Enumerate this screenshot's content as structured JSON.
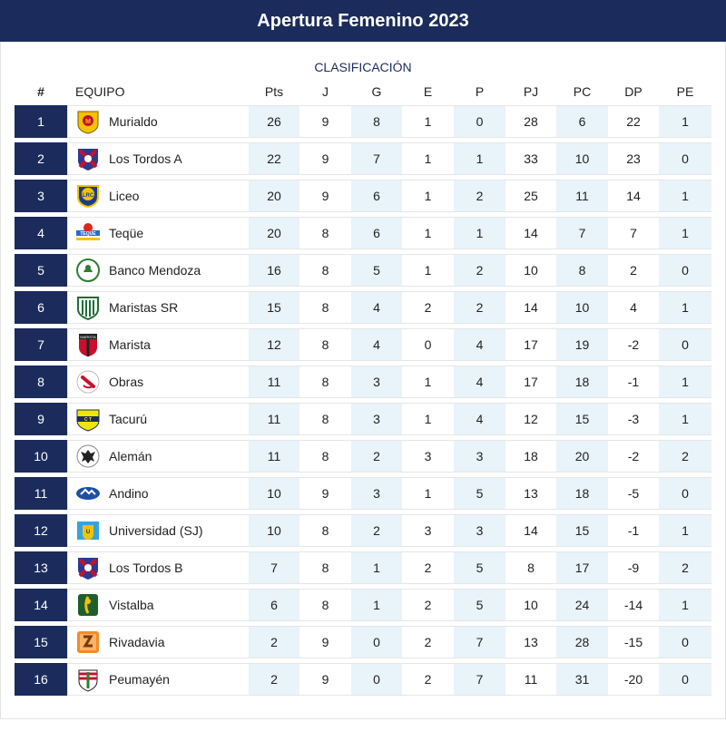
{
  "title": "Apertura Femenino 2023",
  "subtitle": "CLASIFICACIÓN",
  "columns": [
    "#",
    "EQUIPO",
    "Pts",
    "J",
    "G",
    "E",
    "P",
    "PJ",
    "PC",
    "DP",
    "PE"
  ],
  "colors": {
    "navy": "#1b2c5c",
    "shade": "#e8f3fa"
  },
  "rows": [
    {
      "pos": "1",
      "team": "Murialdo",
      "logo": "murialdo-crest-icon",
      "pts": "26",
      "j": "9",
      "g": "8",
      "e": "1",
      "p": "0",
      "pj": "28",
      "pc": "6",
      "dp": "22",
      "pe": "1"
    },
    {
      "pos": "2",
      "team": "Los Tordos A",
      "logo": "los-tordos-shield-icon",
      "pts": "22",
      "j": "9",
      "g": "7",
      "e": "1",
      "p": "1",
      "pj": "33",
      "pc": "10",
      "dp": "23",
      "pe": "0"
    },
    {
      "pos": "3",
      "team": "Liceo",
      "logo": "liceo-shield-icon",
      "pts": "20",
      "j": "9",
      "g": "6",
      "e": "1",
      "p": "2",
      "pj": "25",
      "pc": "11",
      "dp": "14",
      "pe": "1"
    },
    {
      "pos": "4",
      "team": "Teqüe",
      "logo": "teque-logo-icon",
      "pts": "20",
      "j": "8",
      "g": "6",
      "e": "1",
      "p": "1",
      "pj": "14",
      "pc": "7",
      "dp": "7",
      "pe": "1"
    },
    {
      "pos": "5",
      "team": "Banco Mendoza",
      "logo": "banco-mendoza-crest-icon",
      "pts": "16",
      "j": "8",
      "g": "5",
      "e": "1",
      "p": "2",
      "pj": "10",
      "pc": "8",
      "dp": "2",
      "pe": "0"
    },
    {
      "pos": "6",
      "team": "Maristas SR",
      "logo": "maristas-sr-shield-icon",
      "pts": "15",
      "j": "8",
      "g": "4",
      "e": "2",
      "p": "2",
      "pj": "14",
      "pc": "10",
      "dp": "4",
      "pe": "1"
    },
    {
      "pos": "7",
      "team": "Marista",
      "logo": "marista-shield-icon",
      "pts": "12",
      "j": "8",
      "g": "4",
      "e": "0",
      "p": "4",
      "pj": "17",
      "pc": "19",
      "dp": "-2",
      "pe": "0"
    },
    {
      "pos": "8",
      "team": "Obras",
      "logo": "obras-crest-icon",
      "pts": "11",
      "j": "8",
      "g": "3",
      "e": "1",
      "p": "4",
      "pj": "17",
      "pc": "18",
      "dp": "-1",
      "pe": "1"
    },
    {
      "pos": "9",
      "team": "Tacurú",
      "logo": "tacuru-shield-icon",
      "pts": "11",
      "j": "8",
      "g": "3",
      "e": "1",
      "p": "4",
      "pj": "12",
      "pc": "15",
      "dp": "-3",
      "pe": "1"
    },
    {
      "pos": "10",
      "team": "Alemán",
      "logo": "aleman-eagle-crest-icon",
      "pts": "11",
      "j": "8",
      "g": "2",
      "e": "3",
      "p": "3",
      "pj": "18",
      "pc": "20",
      "dp": "-2",
      "pe": "2"
    },
    {
      "pos": "11",
      "team": "Andino",
      "logo": "andino-logo-icon",
      "pts": "10",
      "j": "9",
      "g": "3",
      "e": "1",
      "p": "5",
      "pj": "13",
      "pc": "18",
      "dp": "-5",
      "pe": "0"
    },
    {
      "pos": "12",
      "team": "Universidad (SJ)",
      "logo": "universidad-sj-shield-icon",
      "pts": "10",
      "j": "8",
      "g": "2",
      "e": "3",
      "p": "3",
      "pj": "14",
      "pc": "15",
      "dp": "-1",
      "pe": "1"
    },
    {
      "pos": "13",
      "team": "Los Tordos B",
      "logo": "los-tordos-shield-icon",
      "pts": "7",
      "j": "8",
      "g": "1",
      "e": "2",
      "p": "5",
      "pj": "8",
      "pc": "17",
      "dp": "-9",
      "pe": "2"
    },
    {
      "pos": "14",
      "team": "Vistalba",
      "logo": "vistalba-shield-icon",
      "pts": "6",
      "j": "8",
      "g": "1",
      "e": "2",
      "p": "5",
      "pj": "10",
      "pc": "24",
      "dp": "-14",
      "pe": "1"
    },
    {
      "pos": "15",
      "team": "Rivadavia",
      "logo": "rivadavia-shield-icon",
      "pts": "2",
      "j": "9",
      "g": "0",
      "e": "2",
      "p": "7",
      "pj": "13",
      "pc": "28",
      "dp": "-15",
      "pe": "0"
    },
    {
      "pos": "16",
      "team": "Peumayén",
      "logo": "peumayen-shield-icon",
      "pts": "2",
      "j": "9",
      "g": "0",
      "e": "2",
      "p": "7",
      "pj": "11",
      "pc": "31",
      "dp": "-20",
      "pe": "0"
    }
  ]
}
